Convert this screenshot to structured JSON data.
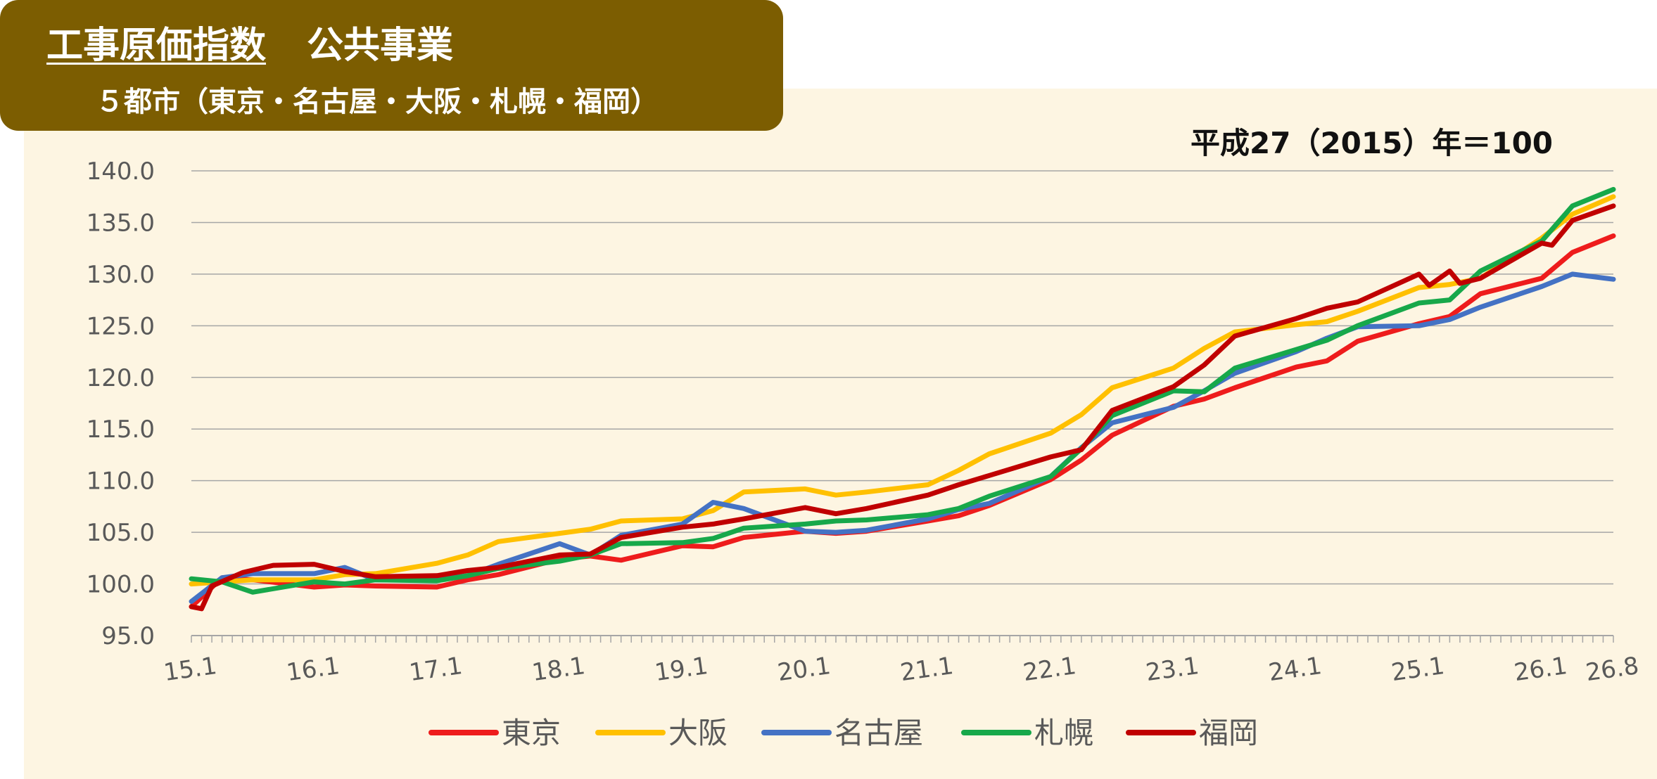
{
  "header": {
    "title_main": "工事原価指数",
    "title_sub": "公共事業",
    "subtitle": "５都市（東京・名古屋・大阪・札幌・福岡）"
  },
  "colors": {
    "header_bg": "#7c5d01",
    "panel_bg": "#fdf5e2",
    "東京": "#ee1c1c",
    "大阪": "#ffc000",
    "名古屋": "#4472c4",
    "札幌": "#17a84a",
    "福岡": "#c00000"
  },
  "chart_data": {
    "type": "line",
    "base_note": "平成27（2015）年＝100",
    "ylim": [
      95,
      140
    ],
    "yticks": [
      "95.0",
      "100.0",
      "105.0",
      "110.0",
      "115.0",
      "120.0",
      "125.0",
      "130.0",
      "135.0",
      "140.0"
    ],
    "x_range": [
      "15.1",
      "26.8"
    ],
    "xtick_labels": [
      "15.1",
      "16.1",
      "17.1",
      "18.1",
      "19.1",
      "20.1",
      "21.1",
      "22.1",
      "23.1",
      "24.1",
      "25.1",
      "26.1",
      "26.8"
    ],
    "grid": true,
    "legend_position": "bottom",
    "series": [
      {
        "name": "東京",
        "points": [
          [
            "15.1",
            97.8
          ],
          [
            "15.4",
            100.6
          ],
          [
            "15.7",
            100.4
          ],
          [
            "16.1",
            99.7
          ],
          [
            "16.4",
            99.9
          ],
          [
            "16.7",
            99.8
          ],
          [
            "17.1",
            99.7
          ],
          [
            "17.4",
            100.4
          ],
          [
            "17.7",
            100.9
          ],
          [
            "18.1",
            102.4
          ],
          [
            "18.4",
            102.7
          ],
          [
            "18.7",
            102.3
          ],
          [
            "19.1",
            103.7
          ],
          [
            "19.4",
            103.6
          ],
          [
            "19.7",
            104.5
          ],
          [
            "20.1",
            105.1
          ],
          [
            "20.4",
            104.9
          ],
          [
            "20.7",
            105.1
          ],
          [
            "21.1",
            106.1
          ],
          [
            "21.4",
            106.6
          ],
          [
            "21.7",
            107.6
          ],
          [
            "22.1",
            110.1
          ],
          [
            "22.4",
            112.0
          ],
          [
            "22.7",
            114.4
          ],
          [
            "23.1",
            117.2
          ],
          [
            "23.4",
            117.9
          ],
          [
            "23.7",
            119.0
          ],
          [
            "24.1",
            121.0
          ],
          [
            "24.4",
            121.6
          ],
          [
            "24.7",
            123.5
          ],
          [
            "25.1",
            125.2
          ],
          [
            "25.4",
            125.9
          ],
          [
            "25.7",
            128.1
          ],
          [
            "26.1",
            129.6
          ],
          [
            "26.4",
            132.1
          ],
          [
            "26.8",
            133.7
          ]
        ]
      },
      {
        "name": "大阪",
        "points": [
          [
            "15.1",
            100.0
          ],
          [
            "15.4",
            100.2
          ],
          [
            "15.7",
            100.4
          ],
          [
            "16.1",
            100.4
          ],
          [
            "16.4",
            100.9
          ],
          [
            "16.7",
            101.0
          ],
          [
            "17.1",
            102.0
          ],
          [
            "17.4",
            102.8
          ],
          [
            "17.7",
            104.1
          ],
          [
            "18.1",
            104.9
          ],
          [
            "18.4",
            105.3
          ],
          [
            "18.7",
            106.1
          ],
          [
            "19.1",
            106.3
          ],
          [
            "19.4",
            107.1
          ],
          [
            "19.7",
            108.9
          ],
          [
            "20.1",
            109.2
          ],
          [
            "20.4",
            108.6
          ],
          [
            "20.7",
            108.9
          ],
          [
            "21.1",
            109.6
          ],
          [
            "21.4",
            111.0
          ],
          [
            "21.7",
            112.6
          ],
          [
            "22.1",
            114.6
          ],
          [
            "22.4",
            116.4
          ],
          [
            "22.7",
            119.0
          ],
          [
            "23.1",
            120.9
          ],
          [
            "23.4",
            122.8
          ],
          [
            "23.7",
            124.4
          ],
          [
            "24.1",
            125.1
          ],
          [
            "24.4",
            125.4
          ],
          [
            "24.7",
            126.4
          ],
          [
            "25.1",
            128.7
          ],
          [
            "25.4",
            129.0
          ],
          [
            "25.7",
            129.6
          ],
          [
            "26.1",
            133.5
          ],
          [
            "26.4",
            135.8
          ],
          [
            "26.8",
            137.5
          ]
        ]
      },
      {
        "name": "名古屋",
        "points": [
          [
            "15.1",
            98.3
          ],
          [
            "15.4",
            100.6
          ],
          [
            "15.7",
            101.0
          ],
          [
            "16.1",
            101.0
          ],
          [
            "16.4",
            101.6
          ],
          [
            "16.7",
            100.4
          ],
          [
            "17.1",
            100.4
          ],
          [
            "17.4",
            100.8
          ],
          [
            "17.7",
            101.9
          ],
          [
            "18.1",
            103.9
          ],
          [
            "18.4",
            102.8
          ],
          [
            "18.7",
            104.7
          ],
          [
            "19.1",
            105.8
          ],
          [
            "19.4",
            107.9
          ],
          [
            "19.7",
            107.3
          ],
          [
            "20.1",
            105.1
          ],
          [
            "20.4",
            105.0
          ],
          [
            "20.7",
            105.2
          ],
          [
            "21.1",
            106.3
          ],
          [
            "21.4",
            107.2
          ],
          [
            "21.7",
            107.8
          ],
          [
            "22.1",
            110.4
          ],
          [
            "22.4",
            113.2
          ],
          [
            "22.7",
            115.6
          ],
          [
            "23.1",
            117.1
          ],
          [
            "23.4",
            118.7
          ],
          [
            "23.7",
            120.4
          ],
          [
            "24.1",
            122.5
          ],
          [
            "24.4",
            123.8
          ],
          [
            "24.7",
            124.9
          ],
          [
            "25.1",
            125.0
          ],
          [
            "25.4",
            125.6
          ],
          [
            "25.7",
            126.8
          ],
          [
            "26.1",
            128.8
          ],
          [
            "26.4",
            130.0
          ],
          [
            "26.8",
            129.5
          ]
        ]
      },
      {
        "name": "札幌",
        "points": [
          [
            "15.1",
            100.5
          ],
          [
            "15.4",
            100.2
          ],
          [
            "15.7",
            99.2
          ],
          [
            "16.1",
            100.2
          ],
          [
            "16.4",
            100.0
          ],
          [
            "16.7",
            100.4
          ],
          [
            "17.1",
            100.3
          ],
          [
            "17.4",
            100.8
          ],
          [
            "17.7",
            101.5
          ],
          [
            "18.1",
            102.2
          ],
          [
            "18.4",
            102.8
          ],
          [
            "18.7",
            103.9
          ],
          [
            "19.1",
            104.0
          ],
          [
            "19.4",
            104.4
          ],
          [
            "19.7",
            105.4
          ],
          [
            "20.1",
            105.8
          ],
          [
            "20.4",
            106.1
          ],
          [
            "20.7",
            106.2
          ],
          [
            "21.1",
            106.7
          ],
          [
            "21.4",
            107.3
          ],
          [
            "21.7",
            108.5
          ],
          [
            "22.1",
            110.4
          ],
          [
            "22.4",
            113.1
          ],
          [
            "22.7",
            116.3
          ],
          [
            "23.1",
            118.7
          ],
          [
            "23.4",
            118.6
          ],
          [
            "23.7",
            120.9
          ],
          [
            "24.1",
            122.7
          ],
          [
            "24.4",
            123.6
          ],
          [
            "24.7",
            125.0
          ],
          [
            "25.1",
            127.2
          ],
          [
            "25.4",
            127.5
          ],
          [
            "25.7",
            130.3
          ],
          [
            "26.1",
            133.2
          ],
          [
            "26.4",
            136.6
          ],
          [
            "26.8",
            138.2
          ]
        ]
      },
      {
        "name": "福岡",
        "points": [
          [
            "15.1",
            97.8
          ],
          [
            "15.2",
            97.6
          ],
          [
            "15.3",
            99.8
          ],
          [
            "15.6",
            101.1
          ],
          [
            "15.9",
            101.8
          ],
          [
            "16.1",
            101.9
          ],
          [
            "16.4",
            101.2
          ],
          [
            "16.7",
            100.7
          ],
          [
            "17.1",
            100.8
          ],
          [
            "17.4",
            101.3
          ],
          [
            "17.7",
            101.6
          ],
          [
            "18.1",
            102.8
          ],
          [
            "18.4",
            102.9
          ],
          [
            "18.7",
            104.5
          ],
          [
            "19.1",
            105.5
          ],
          [
            "19.4",
            105.8
          ],
          [
            "19.7",
            106.3
          ],
          [
            "20.1",
            107.4
          ],
          [
            "20.4",
            106.8
          ],
          [
            "20.7",
            107.3
          ],
          [
            "21.1",
            108.6
          ],
          [
            "21.4",
            109.6
          ],
          [
            "21.7",
            110.5
          ],
          [
            "22.1",
            112.3
          ],
          [
            "22.4",
            113.0
          ],
          [
            "22.7",
            116.8
          ],
          [
            "23.1",
            119.1
          ],
          [
            "23.4",
            121.2
          ],
          [
            "23.7",
            124.0
          ],
          [
            "24.1",
            125.7
          ],
          [
            "24.4",
            126.7
          ],
          [
            "24.7",
            127.3
          ],
          [
            "25.1",
            130.0
          ],
          [
            "25.2",
            128.9
          ],
          [
            "25.4",
            130.3
          ],
          [
            "25.5",
            129.1
          ],
          [
            "25.7",
            129.6
          ],
          [
            "26.1",
            133.0
          ],
          [
            "26.2",
            132.8
          ],
          [
            "26.4",
            135.2
          ],
          [
            "26.8",
            136.6
          ]
        ]
      }
    ]
  }
}
